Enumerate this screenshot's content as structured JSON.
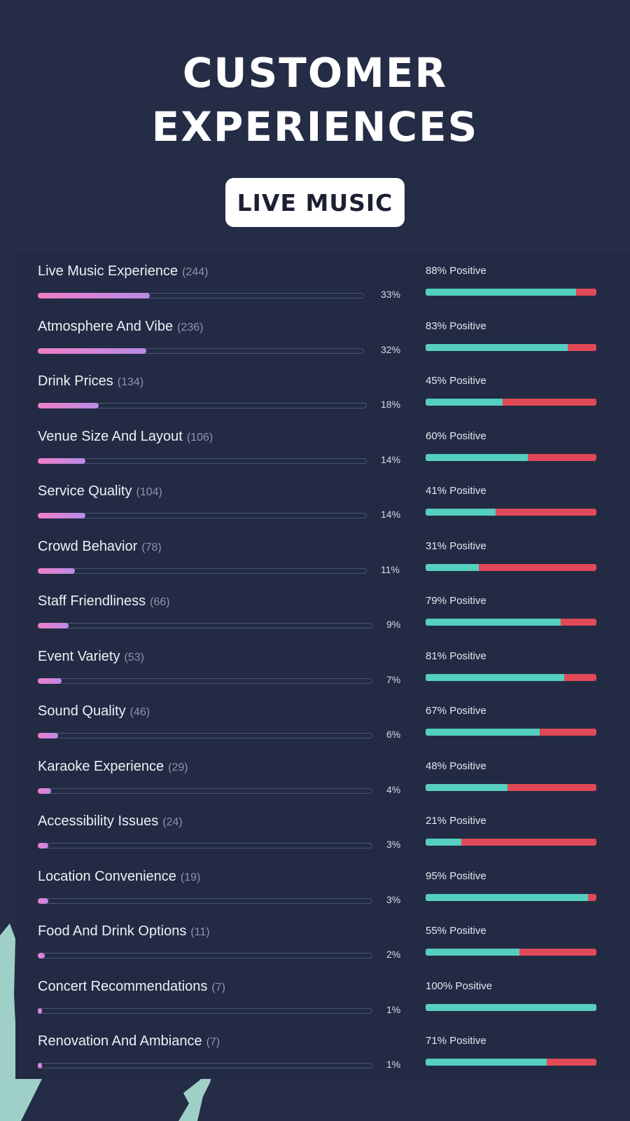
{
  "header": {
    "title_line1": "CUSTOMER",
    "title_line2": "EXPERIENCES",
    "badge": "LIVE MUSIC"
  },
  "colors": {
    "background": "#252c46",
    "share_bar_start": "#f07ec7",
    "share_bar_end": "#b98be6",
    "positive": "#55cfc0",
    "negative": "#e04958"
  },
  "chart_data": {
    "type": "bar",
    "categories": [
      "Live Music Experience",
      "Atmosphere And Vibe",
      "Drink Prices",
      "Venue Size And Layout",
      "Service Quality",
      "Crowd Behavior",
      "Staff Friendliness",
      "Event Variety",
      "Sound Quality",
      "Karaoke Experience",
      "Accessibility Issues",
      "Location Convenience",
      "Food And Drink Options",
      "Concert Recommendations",
      "Renovation And Ambiance"
    ],
    "series": [
      {
        "name": "",
        "values": [
          244,
          236,
          134,
          106,
          104,
          78,
          66,
          53,
          46,
          29,
          24,
          19,
          11,
          7,
          7
        ]
      },
      {
        "name": "",
        "values": [
          33,
          32,
          18,
          14,
          14,
          11,
          9,
          7,
          6,
          4,
          3,
          3,
          2,
          1,
          1
        ]
      },
      {
        "name": "",
        "values": [
          88,
          83,
          45,
          60,
          41,
          31,
          79,
          81,
          67,
          48,
          21,
          95,
          55,
          100,
          71
        ]
      }
    ],
    "rows": [
      {
        "label": "Live Music Experience",
        "count_text": "(244)",
        "share": 33,
        "share_text": "33%",
        "positive": 88,
        "positive_text": "88% Positive"
      },
      {
        "label": "Atmosphere And Vibe",
        "count_text": "(236)",
        "share": 32,
        "share_text": "32%",
        "positive": 83,
        "positive_text": "83% Positive"
      },
      {
        "label": "Drink Prices",
        "count_text": "(134)",
        "share": 18,
        "share_text": "18%",
        "positive": 45,
        "positive_text": "45% Positive"
      },
      {
        "label": "Venue Size And Layout",
        "count_text": "(106)",
        "share": 14,
        "share_text": "14%",
        "positive": 60,
        "positive_text": "60% Positive"
      },
      {
        "label": "Service Quality",
        "count_text": "(104)",
        "share": 14,
        "share_text": "14%",
        "positive": 41,
        "positive_text": "41% Positive"
      },
      {
        "label": "Crowd Behavior",
        "count_text": "(78)",
        "share": 11,
        "share_text": "11%",
        "positive": 31,
        "positive_text": "31% Positive"
      },
      {
        "label": "Staff Friendliness",
        "count_text": "(66)",
        "share": 9,
        "share_text": "9%",
        "positive": 79,
        "positive_text": "79% Positive"
      },
      {
        "label": "Event Variety",
        "count_text": "(53)",
        "share": 7,
        "share_text": "7%",
        "positive": 81,
        "positive_text": "81% Positive"
      },
      {
        "label": "Sound Quality",
        "count_text": "(46)",
        "share": 6,
        "share_text": "6%",
        "positive": 67,
        "positive_text": "67% Positive"
      },
      {
        "label": "Karaoke Experience",
        "count_text": "(29)",
        "share": 4,
        "share_text": "4%",
        "positive": 48,
        "positive_text": "48% Positive"
      },
      {
        "label": "Accessibility Issues",
        "count_text": "(24)",
        "share": 3,
        "share_text": "3%",
        "positive": 21,
        "positive_text": "21% Positive"
      },
      {
        "label": "Location Convenience",
        "count_text": "(19)",
        "share": 3,
        "share_text": "3%",
        "positive": 95,
        "positive_text": "95% Positive"
      },
      {
        "label": "Food And Drink Options",
        "count_text": "(11)",
        "share": 2,
        "share_text": "2%",
        "positive": 55,
        "positive_text": "55% Positive"
      },
      {
        "label": "Concert Recommendations",
        "count_text": "(7)",
        "share": 1,
        "share_text": "1%",
        "positive": 100,
        "positive_text": "100% Positive"
      },
      {
        "label": "Renovation And Ambiance",
        "count_text": "(7)",
        "share": 1,
        "share_text": "1%",
        "positive": 71,
        "positive_text": "71% Positive"
      }
    ]
  }
}
